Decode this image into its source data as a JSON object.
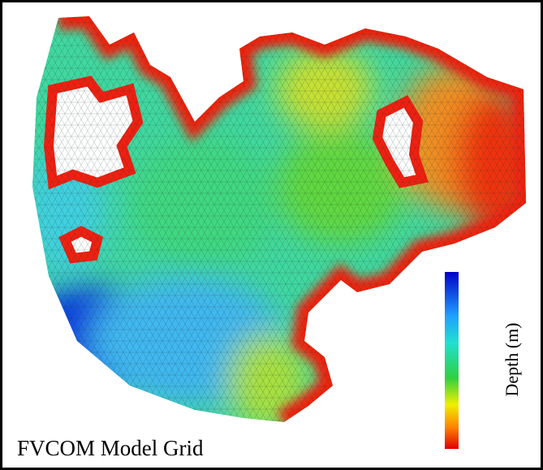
{
  "caption": "FVCOM Model Grid",
  "colorbar": {
    "label": "Depth (m)"
  }
}
